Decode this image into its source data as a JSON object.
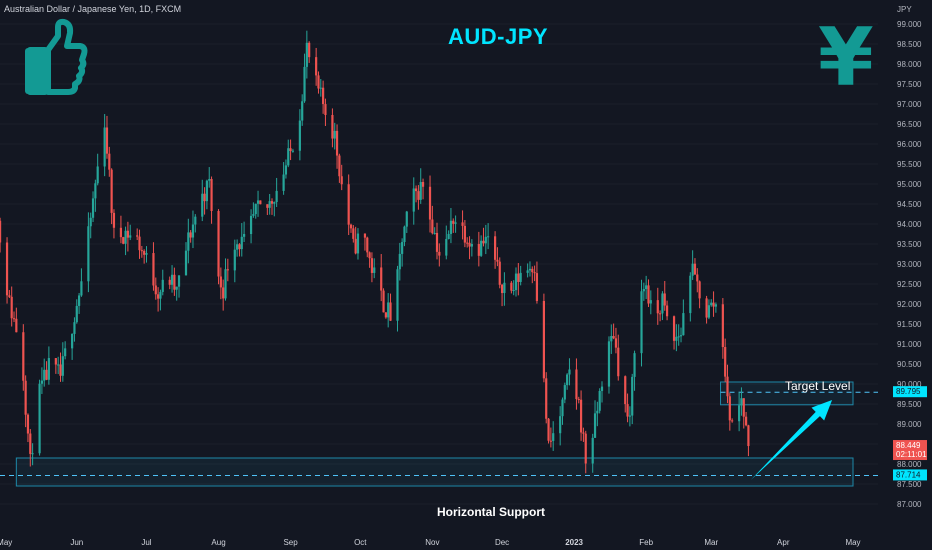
{
  "header": {
    "symbol_label": "Australian Dollar / Japanese Yen, 1D, FXCM",
    "title": "AUD-JPY",
    "yen_symbol": "¥",
    "thumb_icon": "thumbs-up-icon"
  },
  "colors": {
    "background": "#131722",
    "up": "#26a69a",
    "down": "#ef5350",
    "accent": "#00e5ff",
    "icon": "#139a94",
    "box": "#1e88a8"
  },
  "chart_data": {
    "type": "candlestick",
    "title": "AUD-JPY",
    "unit_label": "JPY",
    "ylim": [
      86.8,
      99.1
    ],
    "y_ticks": [
      "99.000",
      "98.500",
      "98.000",
      "97.500",
      "97.000",
      "96.500",
      "96.000",
      "95.500",
      "95.000",
      "94.500",
      "94.000",
      "93.500",
      "93.000",
      "92.500",
      "92.000",
      "91.500",
      "91.000",
      "90.500",
      "90.000",
      "89.500",
      "89.000",
      "88.500",
      "88.000",
      "87.500",
      "87.000"
    ],
    "x_ticks": [
      {
        "label": "May",
        "date": "2022-05-01"
      },
      {
        "label": "Jun",
        "date": "2022-06-01"
      },
      {
        "label": "Jul",
        "date": "2022-07-01"
      },
      {
        "label": "Aug",
        "date": "2022-08-01"
      },
      {
        "label": "Sep",
        "date": "2022-09-01"
      },
      {
        "label": "Oct",
        "date": "2022-10-01"
      },
      {
        "label": "Nov",
        "date": "2022-11-01"
      },
      {
        "label": "Dec",
        "date": "2022-12-01"
      },
      {
        "label": "2023",
        "date": "2023-01-01",
        "bold": true
      },
      {
        "label": "Feb",
        "date": "2023-02-01"
      },
      {
        "label": "Mar",
        "date": "2023-03-01"
      },
      {
        "label": "Apr",
        "date": "2023-04-01"
      },
      {
        "label": "May",
        "date": "2023-05-01"
      }
    ],
    "close_path": [
      [
        "2022-04-26",
        94.9
      ],
      [
        "2022-05-03",
        92.0
      ],
      [
        "2022-05-08",
        91.0
      ],
      [
        "2022-05-12",
        88.0
      ],
      [
        "2022-05-15",
        89.6
      ],
      [
        "2022-05-20",
        90.4
      ],
      [
        "2022-05-25",
        90.2
      ],
      [
        "2022-05-30",
        91.5
      ],
      [
        "2022-06-04",
        92.8
      ],
      [
        "2022-06-09",
        95.0
      ],
      [
        "2022-06-13",
        96.6
      ],
      [
        "2022-06-17",
        93.7
      ],
      [
        "2022-06-22",
        93.8
      ],
      [
        "2022-06-27",
        93.6
      ],
      [
        "2022-07-01",
        93.1
      ],
      [
        "2022-07-06",
        92.3
      ],
      [
        "2022-07-11",
        92.6
      ],
      [
        "2022-07-14",
        92.3
      ],
      [
        "2022-07-19",
        93.6
      ],
      [
        "2022-07-24",
        94.6
      ],
      [
        "2022-07-28",
        95.0
      ],
      [
        "2022-08-01",
        92.6
      ],
      [
        "2022-08-03",
        92.4
      ],
      [
        "2022-08-07",
        93.6
      ],
      [
        "2022-08-12",
        93.5
      ],
      [
        "2022-08-17",
        94.3
      ],
      [
        "2022-08-22",
        94.4
      ],
      [
        "2022-08-27",
        95.0
      ],
      [
        "2022-09-01",
        95.8
      ],
      [
        "2022-09-05",
        96.8
      ],
      [
        "2022-09-08",
        98.4
      ],
      [
        "2022-09-11",
        97.6
      ],
      [
        "2022-09-15",
        97.0
      ],
      [
        "2022-09-20",
        96.2
      ],
      [
        "2022-09-24",
        94.6
      ],
      [
        "2022-09-28",
        93.4
      ],
      [
        "2022-10-02",
        93.8
      ],
      [
        "2022-10-06",
        92.9
      ],
      [
        "2022-10-11",
        92.0
      ],
      [
        "2022-10-15",
        91.6
      ],
      [
        "2022-10-19",
        93.6
      ],
      [
        "2022-10-23",
        94.6
      ],
      [
        "2022-10-28",
        95.0
      ],
      [
        "2022-11-01",
        94.0
      ],
      [
        "2022-11-05",
        93.0
      ],
      [
        "2022-11-10",
        94.2
      ],
      [
        "2022-11-15",
        93.8
      ],
      [
        "2022-11-20",
        93.4
      ],
      [
        "2022-11-25",
        93.6
      ],
      [
        "2022-11-30",
        92.6
      ],
      [
        "2022-12-05",
        92.3
      ],
      [
        "2022-12-09",
        92.8
      ],
      [
        "2022-12-15",
        93.0
      ],
      [
        "2022-12-19",
        90.0
      ],
      [
        "2022-12-21",
        88.4
      ],
      [
        "2022-12-26",
        89.2
      ],
      [
        "2022-12-30",
        90.3
      ],
      [
        "2023-01-03",
        89.5
      ],
      [
        "2023-01-06",
        88.1
      ],
      [
        "2023-01-10",
        89.0
      ],
      [
        "2023-01-14",
        90.5
      ],
      [
        "2023-01-18",
        91.3
      ],
      [
        "2023-01-22",
        89.6
      ],
      [
        "2023-01-25",
        89.0
      ],
      [
        "2023-01-28",
        92.0
      ],
      [
        "2023-02-01",
        92.5
      ],
      [
        "2023-02-04",
        91.5
      ],
      [
        "2023-02-08",
        92.1
      ],
      [
        "2023-02-12",
        91.0
      ],
      [
        "2023-02-16",
        91.3
      ],
      [
        "2023-02-20",
        92.9
      ],
      [
        "2023-02-24",
        92.3
      ],
      [
        "2023-02-27",
        91.8
      ],
      [
        "2023-03-02",
        92.0
      ],
      [
        "2023-03-05",
        91.9
      ],
      [
        "2023-03-08",
        89.5
      ],
      [
        "2023-03-11",
        88.8
      ],
      [
        "2023-03-14",
        89.7
      ],
      [
        "2023-03-17",
        88.449
      ]
    ],
    "levels": {
      "current_price": "88.449",
      "countdown": "02:11:01",
      "target_level": "89.795",
      "support_level": "87.714"
    },
    "zones": {
      "target_box": {
        "from_date": "2023-03-05",
        "to_date": "2023-05-01",
        "low": 89.48,
        "high": 90.05
      },
      "support_box": {
        "from_date": "2022-05-06",
        "to_date": "2023-05-01",
        "low": 87.45,
        "high": 88.15
      }
    },
    "arrow": {
      "from_date": "2023-03-18",
      "from_price": 87.6,
      "to_date": "2023-04-22",
      "to_price": 89.6
    },
    "annotations": {
      "target": "Target Level",
      "support": "Horizontal Support"
    }
  }
}
